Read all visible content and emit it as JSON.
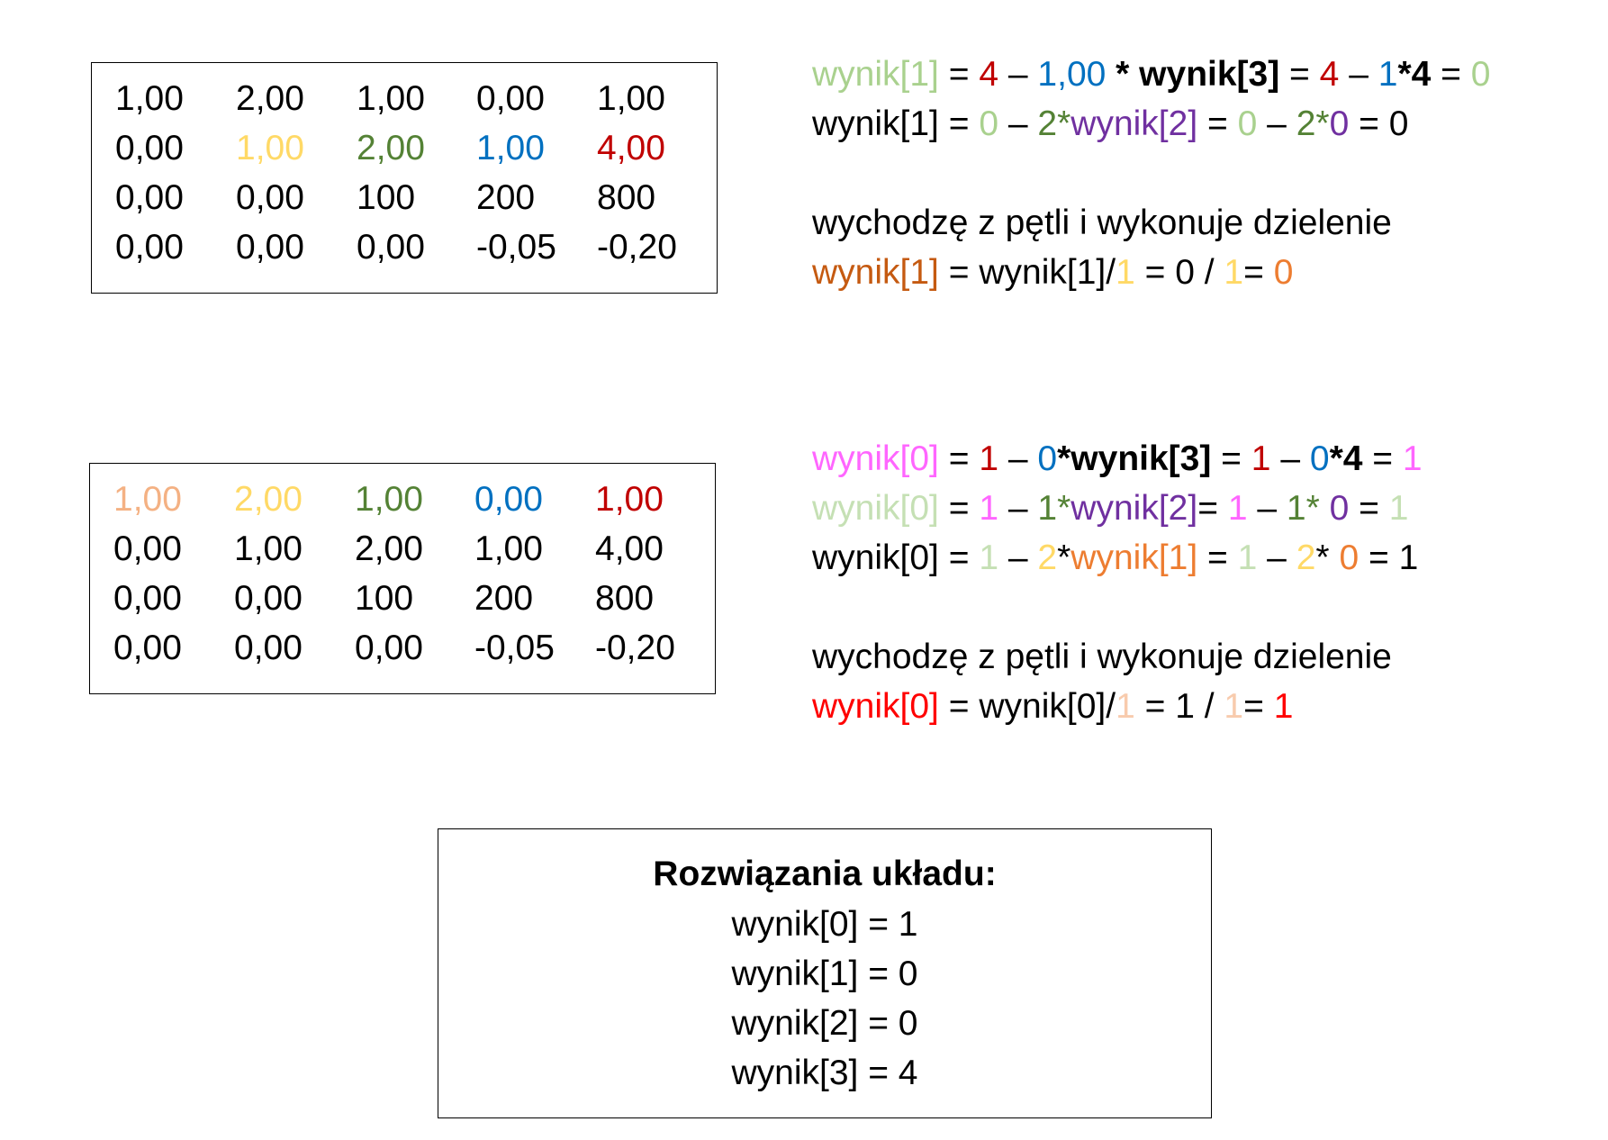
{
  "colors": {
    "black": "#000000",
    "light_green": "#a9d18e",
    "dark_green": "#548235",
    "red": "#c00000",
    "bright_red": "#ff0000",
    "blue": "#0070c0",
    "purple": "#7030a0",
    "brown": "#c55a11",
    "yellow": "#ffd966",
    "orange": "#ed7d31",
    "pink": "#ff66ff",
    "salmon": "#f4b183",
    "peach": "#f8cbad",
    "pale_green": "#c5e0b4"
  },
  "matrix1": {
    "rows": [
      {
        "cells": [
          {
            "text": "1,00",
            "color": "#000000"
          },
          {
            "text": "2,00",
            "color": "#000000"
          },
          {
            "text": "1,00",
            "color": "#000000"
          },
          {
            "text": "0,00",
            "color": "#000000"
          },
          {
            "text": "1,00",
            "color": "#000000"
          }
        ]
      },
      {
        "cells": [
          {
            "text": "0,00",
            "color": "#000000"
          },
          {
            "text": "1,00",
            "color": "#ffd966"
          },
          {
            "text": "2,00",
            "color": "#548235"
          },
          {
            "text": "1,00",
            "color": "#0070c0"
          },
          {
            "text": "4,00",
            "color": "#c00000"
          }
        ]
      },
      {
        "cells": [
          {
            "text": "0,00",
            "color": "#000000"
          },
          {
            "text": "0,00",
            "color": "#000000"
          },
          {
            "text": "100",
            "color": "#000000"
          },
          {
            "text": "200",
            "color": "#000000"
          },
          {
            "text": "800",
            "color": "#000000"
          }
        ]
      },
      {
        "cells": [
          {
            "text": "0,00",
            "color": "#000000"
          },
          {
            "text": "0,00",
            "color": "#000000"
          },
          {
            "text": "0,00",
            "color": "#000000"
          },
          {
            "text": "-0,05",
            "color": "#000000"
          },
          {
            "text": "-0,20",
            "color": "#000000"
          }
        ]
      }
    ]
  },
  "matrix2": {
    "rows": [
      {
        "cells": [
          {
            "text": "1,00",
            "color": "#f4b183"
          },
          {
            "text": "2,00",
            "color": "#ffd966"
          },
          {
            "text": "1,00",
            "color": "#548235"
          },
          {
            "text": "0,00",
            "color": "#0070c0"
          },
          {
            "text": "1,00",
            "color": "#c00000"
          }
        ]
      },
      {
        "cells": [
          {
            "text": "0,00",
            "color": "#000000"
          },
          {
            "text": "1,00",
            "color": "#000000"
          },
          {
            "text": "2,00",
            "color": "#000000"
          },
          {
            "text": "1,00",
            "color": "#000000"
          },
          {
            "text": "4,00",
            "color": "#000000"
          }
        ]
      },
      {
        "cells": [
          {
            "text": "0,00",
            "color": "#000000"
          },
          {
            "text": "0,00",
            "color": "#000000"
          },
          {
            "text": "100",
            "color": "#000000"
          },
          {
            "text": "200",
            "color": "#000000"
          },
          {
            "text": "800",
            "color": "#000000"
          }
        ]
      },
      {
        "cells": [
          {
            "text": "0,00",
            "color": "#000000"
          },
          {
            "text": "0,00",
            "color": "#000000"
          },
          {
            "text": "0,00",
            "color": "#000000"
          },
          {
            "text": "-0,05",
            "color": "#000000"
          },
          {
            "text": "-0,20",
            "color": "#000000"
          }
        ]
      }
    ]
  },
  "steps_top": [
    {
      "segments": [
        {
          "text": "wynik[1]",
          "color": "#a9d18e",
          "bold": false
        },
        {
          "text": " = ",
          "color": "#000000",
          "bold": false
        },
        {
          "text": "4",
          "color": "#c00000",
          "bold": false
        },
        {
          "text": " – ",
          "color": "#000000",
          "bold": false
        },
        {
          "text": "1,00",
          "color": "#0070c0",
          "bold": false
        },
        {
          "text": " * wynik[3]",
          "color": "#000000",
          "bold": true
        },
        {
          "text": " = ",
          "color": "#000000",
          "bold": false
        },
        {
          "text": "4",
          "color": "#c00000",
          "bold": false
        },
        {
          "text": " – ",
          "color": "#000000",
          "bold": false
        },
        {
          "text": "1",
          "color": "#0070c0",
          "bold": false
        },
        {
          "text": "*4",
          "color": "#000000",
          "bold": true
        },
        {
          "text": " = ",
          "color": "#000000",
          "bold": false
        },
        {
          "text": "0",
          "color": "#a9d18e",
          "bold": false
        }
      ]
    },
    {
      "segments": [
        {
          "text": "wynik[1] = ",
          "color": "#000000",
          "bold": false
        },
        {
          "text": "0",
          "color": "#a9d18e",
          "bold": false
        },
        {
          "text": " – ",
          "color": "#000000",
          "bold": false
        },
        {
          "text": "2*",
          "color": "#548235",
          "bold": false
        },
        {
          "text": "wynik[2]",
          "color": "#7030a0",
          "bold": false
        },
        {
          "text": " = ",
          "color": "#000000",
          "bold": false
        },
        {
          "text": "0",
          "color": "#a9d18e",
          "bold": false
        },
        {
          "text": " – ",
          "color": "#000000",
          "bold": false
        },
        {
          "text": "2*",
          "color": "#548235",
          "bold": false
        },
        {
          "text": "0",
          "color": "#7030a0",
          "bold": false
        },
        {
          "text": " = 0",
          "color": "#000000",
          "bold": false
        }
      ]
    },
    {
      "segments": []
    },
    {
      "segments": [
        {
          "text": "wychodzę z pętli i wykonuje dzielenie",
          "color": "#000000",
          "bold": false
        }
      ]
    },
    {
      "segments": [
        {
          "text": "wynik[1]",
          "color": "#c55a11",
          "bold": false
        },
        {
          "text": " = wynik[1]/",
          "color": "#000000",
          "bold": false
        },
        {
          "text": "1",
          "color": "#ffd966",
          "bold": false
        },
        {
          "text": " = 0 / ",
          "color": "#000000",
          "bold": false
        },
        {
          "text": "1",
          "color": "#ffd966",
          "bold": false
        },
        {
          "text": "= ",
          "color": "#000000",
          "bold": false
        },
        {
          "text": "0",
          "color": "#ed7d31",
          "bold": false
        }
      ]
    }
  ],
  "steps_bottom": [
    {
      "segments": [
        {
          "text": "wynik[0]",
          "color": "#ff66ff",
          "bold": false
        },
        {
          "text": " = ",
          "color": "#000000",
          "bold": false
        },
        {
          "text": "1",
          "color": "#c00000",
          "bold": false
        },
        {
          "text": " – ",
          "color": "#000000",
          "bold": false
        },
        {
          "text": "0",
          "color": "#0070c0",
          "bold": false
        },
        {
          "text": "*wynik[3]",
          "color": "#000000",
          "bold": true
        },
        {
          "text": " = ",
          "color": "#000000",
          "bold": false
        },
        {
          "text": "1",
          "color": "#c00000",
          "bold": false
        },
        {
          "text": " – ",
          "color": "#000000",
          "bold": false
        },
        {
          "text": "0",
          "color": "#0070c0",
          "bold": false
        },
        {
          "text": "*4",
          "color": "#000000",
          "bold": true
        },
        {
          "text": " = ",
          "color": "#000000",
          "bold": false
        },
        {
          "text": "1",
          "color": "#ff66ff",
          "bold": false
        }
      ]
    },
    {
      "segments": [
        {
          "text": "wynik[0]",
          "color": "#c5e0b4",
          "bold": false
        },
        {
          "text": " = ",
          "color": "#000000",
          "bold": false
        },
        {
          "text": "1",
          "color": "#ff66ff",
          "bold": false
        },
        {
          "text": " – ",
          "color": "#000000",
          "bold": false
        },
        {
          "text": "1*",
          "color": "#548235",
          "bold": false
        },
        {
          "text": "wynik[2]",
          "color": "#7030a0",
          "bold": false
        },
        {
          "text": "= ",
          "color": "#000000",
          "bold": false
        },
        {
          "text": "1",
          "color": "#ff66ff",
          "bold": false
        },
        {
          "text": " – ",
          "color": "#000000",
          "bold": false
        },
        {
          "text": "1* ",
          "color": "#548235",
          "bold": false
        },
        {
          "text": "0",
          "color": "#7030a0",
          "bold": false
        },
        {
          "text": " = ",
          "color": "#000000",
          "bold": false
        },
        {
          "text": "1",
          "color": "#c5e0b4",
          "bold": false
        }
      ]
    },
    {
      "segments": [
        {
          "text": "wynik[0] = ",
          "color": "#000000",
          "bold": false
        },
        {
          "text": "1",
          "color": "#c5e0b4",
          "bold": false
        },
        {
          "text": " – ",
          "color": "#000000",
          "bold": false
        },
        {
          "text": "2",
          "color": "#ffd966",
          "bold": false
        },
        {
          "text": "*",
          "color": "#000000",
          "bold": false
        },
        {
          "text": "wynik[1]",
          "color": "#ed7d31",
          "bold": false
        },
        {
          "text": " = ",
          "color": "#000000",
          "bold": false
        },
        {
          "text": "1",
          "color": "#c5e0b4",
          "bold": false
        },
        {
          "text": " – ",
          "color": "#000000",
          "bold": false
        },
        {
          "text": "2",
          "color": "#ffd966",
          "bold": false
        },
        {
          "text": "* ",
          "color": "#000000",
          "bold": false
        },
        {
          "text": "0",
          "color": "#ed7d31",
          "bold": false
        },
        {
          "text": " = 1",
          "color": "#000000",
          "bold": false
        }
      ]
    },
    {
      "segments": []
    },
    {
      "segments": [
        {
          "text": "wychodzę z pętli i wykonuje dzielenie",
          "color": "#000000",
          "bold": false
        }
      ]
    },
    {
      "segments": [
        {
          "text": "wynik[0]",
          "color": "#ff0000",
          "bold": false
        },
        {
          "text": " = wynik[0]/",
          "color": "#000000",
          "bold": false
        },
        {
          "text": "1",
          "color": "#f8cbad",
          "bold": false
        },
        {
          "text": " = 1 / ",
          "color": "#000000",
          "bold": false
        },
        {
          "text": "1",
          "color": "#f8cbad",
          "bold": false
        },
        {
          "text": "= ",
          "color": "#000000",
          "bold": false
        },
        {
          "text": "1",
          "color": "#ff0000",
          "bold": false
        }
      ]
    }
  ],
  "result": {
    "title": "Rozwiązania układu:",
    "lines": [
      "wynik[0] = 1",
      "wynik[1] = 0",
      "wynik[2] = 0",
      "wynik[3] = 4"
    ]
  }
}
